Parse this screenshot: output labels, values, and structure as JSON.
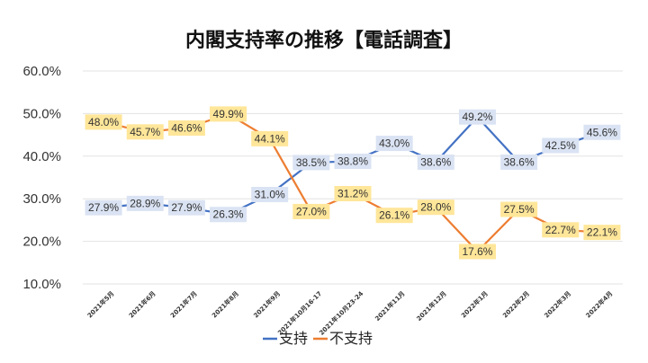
{
  "chart_data": {
    "type": "line",
    "title": "内閣支持率の推移【電話調査】",
    "categories": [
      "2021年5月",
      "2021年6月",
      "2021年7月",
      "2021年8月",
      "2021年9月",
      "2021年10月16-17",
      "2021年10月23-24",
      "2021年11月",
      "2021年12月",
      "2022年1月",
      "2022年2月",
      "2022年3月",
      "2022年4月"
    ],
    "series": [
      {
        "name": "支持",
        "color": "#4472c4",
        "label_bg": "#dae3f3",
        "values": [
          27.9,
          28.9,
          27.9,
          26.3,
          31.0,
          38.5,
          38.8,
          43.0,
          38.6,
          49.2,
          38.6,
          42.5,
          45.6
        ]
      },
      {
        "name": "不支持",
        "color": "#ed7d31",
        "label_bg": "#ffe699",
        "values": [
          48.0,
          45.7,
          46.6,
          49.9,
          44.1,
          27.0,
          31.2,
          26.1,
          28.0,
          17.6,
          27.5,
          22.7,
          22.1
        ]
      }
    ],
    "yticks": [
      "10.0%",
      "20.0%",
      "30.0%",
      "40.0%",
      "50.0%",
      "60.0%"
    ],
    "ylim": [
      10,
      60
    ],
    "grid": true,
    "legend_position": "bottom"
  }
}
